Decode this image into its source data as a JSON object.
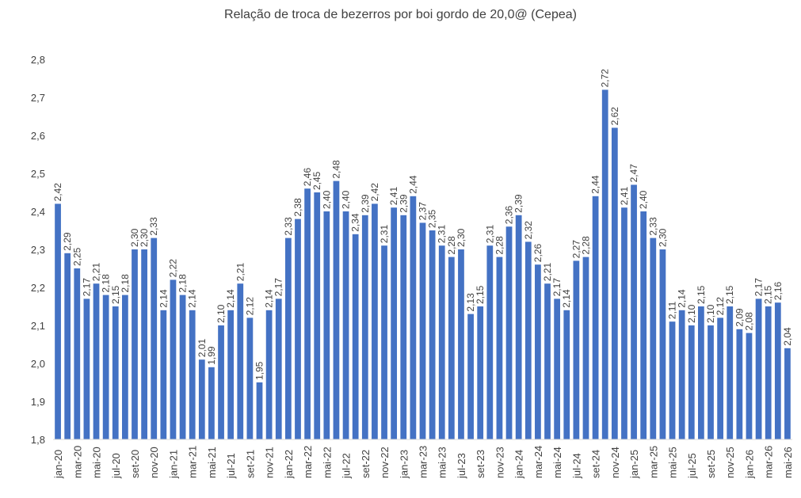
{
  "chart_data": {
    "type": "bar",
    "title": "Relação de troca de bezerros por boi gordo de 20,0@ (Cepea)",
    "xlabel": "",
    "ylabel": "",
    "ylim": [
      1.8,
      2.8
    ],
    "yticks": [
      "1,8",
      "1,9",
      "2,0",
      "2,1",
      "2,2",
      "2,3",
      "2,4",
      "2,5",
      "2,6",
      "2,7",
      "2,8"
    ],
    "bar_color": "#4472C4",
    "grid": false,
    "legend": "none",
    "categories": [
      "jan-20",
      "fev-20",
      "mar-20",
      "abr-20",
      "mai-20",
      "jun-20",
      "jul-20",
      "ago-20",
      "set-20",
      "out-20",
      "nov-20",
      "dez-20",
      "jan-21",
      "fev-21",
      "mar-21",
      "abr-21",
      "mai-21",
      "jun-21",
      "jul-21",
      "ago-21",
      "set-21",
      "out-21",
      "nov-21",
      "dez-21",
      "jan-22",
      "fev-22",
      "mar-22",
      "abr-22",
      "mai-22",
      "jun-22",
      "jul-22",
      "ago-22",
      "set-22",
      "out-22",
      "nov-22",
      "dez-22",
      "jan-23",
      "fev-23",
      "mar-23",
      "abr-23",
      "mai-23",
      "jun-23",
      "jul-23",
      "ago-23",
      "set-23",
      "out-23",
      "nov-23",
      "dez-23",
      "jan-24",
      "fev-24",
      "mar-24",
      "abr-24",
      "mai-24",
      "jun-24",
      "jul-24",
      "ago-24",
      "set-24",
      "out-24",
      "nov-24",
      "dez-24",
      "jan-25",
      "fev-25",
      "mar-25",
      "abr-25",
      "mai-25",
      "jun-25",
      "jul-25",
      "ago-25",
      "set-25",
      "out-25",
      "nov-25",
      "dez-25",
      "jan-26",
      "fev-26",
      "mar-26",
      "abr-26",
      "mai-26"
    ],
    "x_tick_labels": [
      "jan-20",
      "",
      "mar-20",
      "",
      "mai-20",
      "",
      "jul-20",
      "",
      "set-20",
      "",
      "nov-20",
      "",
      "jan-21",
      "",
      "mar-21",
      "",
      "mai-21",
      "",
      "jul-21",
      "",
      "set-21",
      "",
      "nov-21",
      "",
      "jan-22",
      "",
      "mar-22",
      "",
      "mai-22",
      "",
      "jul-22",
      "",
      "set-22",
      "",
      "nov-22",
      "",
      "jan-23",
      "",
      "mar-23",
      "",
      "mai-23",
      "",
      "jul-23",
      "",
      "set-23",
      "",
      "nov-23",
      "",
      "jan-24",
      "",
      "mar-24",
      "",
      "mai-24",
      "",
      "jul-24",
      "",
      "set-24",
      "",
      "nov-24",
      "",
      "jan-25",
      "",
      "mar-25",
      "",
      "mai-25",
      "",
      "jul-25",
      "",
      "set-25",
      "",
      "nov-25",
      "",
      "jan-26",
      "",
      "mar-26",
      "",
      "mai-26"
    ],
    "values": [
      2.42,
      2.29,
      2.25,
      2.17,
      2.21,
      2.18,
      2.15,
      2.18,
      2.3,
      2.3,
      2.33,
      2.14,
      2.22,
      2.18,
      2.14,
      2.01,
      1.99,
      2.1,
      2.14,
      2.21,
      2.12,
      1.95,
      2.14,
      2.17,
      2.33,
      2.38,
      2.46,
      2.45,
      2.4,
      2.48,
      2.4,
      2.34,
      2.39,
      2.42,
      2.31,
      2.41,
      2.39,
      2.44,
      2.37,
      2.35,
      2.31,
      2.28,
      2.3,
      2.13,
      2.15,
      2.31,
      2.28,
      2.36,
      2.39,
      2.32,
      2.26,
      2.21,
      2.17,
      2.14,
      2.27,
      2.28,
      2.44,
      2.72,
      2.62,
      2.41,
      2.47,
      2.4,
      2.33,
      2.3,
      2.11,
      2.14,
      2.1,
      2.15,
      2.1,
      2.12,
      2.15,
      2.09,
      2.08,
      2.17,
      2.15,
      2.16,
      2.04
    ],
    "data_labels": [
      "2,42",
      "2,29",
      "2,25",
      "2,17",
      "2,21",
      "2,18",
      "2,15",
      "2,18",
      "2,30",
      "2,30",
      "2,33",
      "2,14",
      "2,22",
      "2,18",
      "2,14",
      "2,01",
      "1,99",
      "2,10",
      "2,14",
      "2,21",
      "2,12",
      "1,95",
      "2,14",
      "2,17",
      "2,33",
      "2,38",
      "2,46",
      "2,45",
      "2,40",
      "2,48",
      "2,40",
      "2,34",
      "2,39",
      "2,42",
      "2,31",
      "2,41",
      "2,39",
      "2,44",
      "2,37",
      "2,35",
      "2,31",
      "2,28",
      "2,30",
      "2,13",
      "2,15",
      "2,31",
      "2,28",
      "2,36",
      "2,39",
      "2,32",
      "2,26",
      "2,21",
      "2,17",
      "2,14",
      "2,27",
      "2,28",
      "2,44",
      "2,72",
      "2,62",
      "2,41",
      "2,47",
      "2,40",
      "2,33",
      "2,30",
      "2,11",
      "2,14",
      "2,10",
      "2,15",
      "2,10",
      "2,12",
      "2,15",
      "2,09",
      "2,08",
      "2,17",
      "2,15",
      "2,16",
      "2,04"
    ]
  }
}
